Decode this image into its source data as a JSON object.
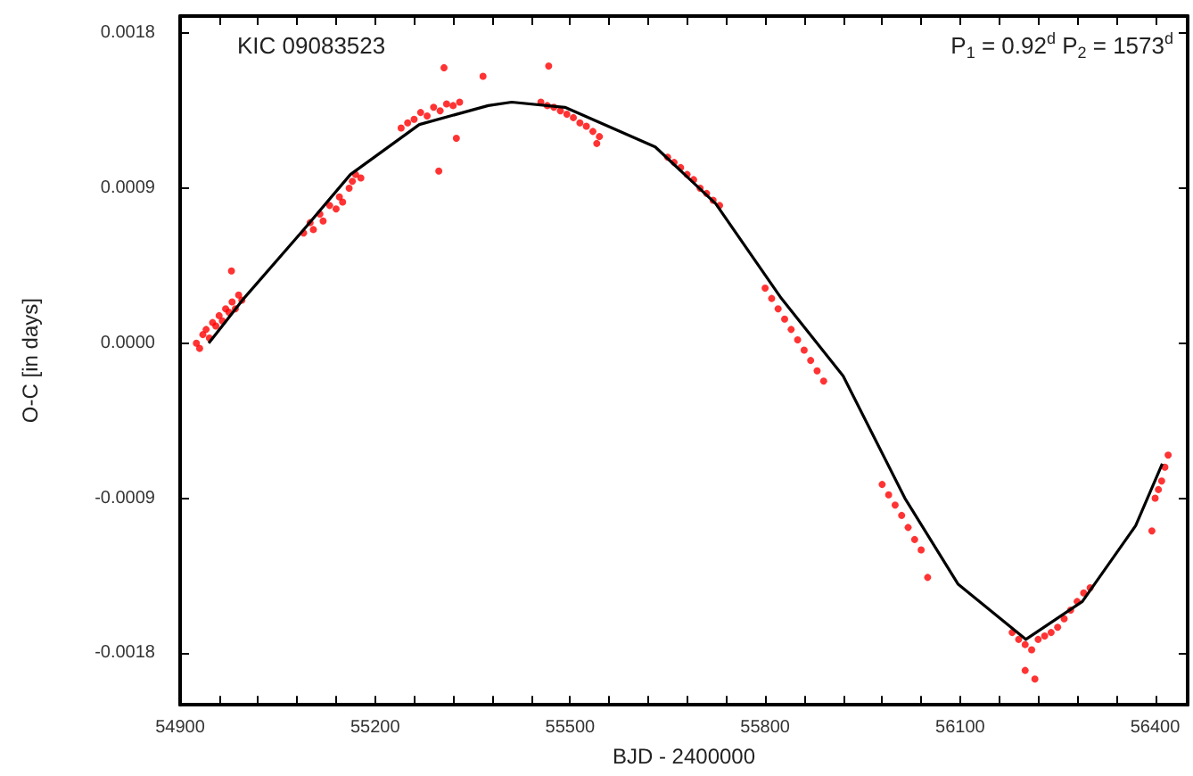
{
  "chart_data": {
    "type": "scatter",
    "title": "KIC 09083523",
    "xlabel": "BJD - 2400000",
    "ylabel": "O-C [in days]",
    "annotations": [
      "P$_{1}$ = 0.92$^{d}$ P$_{2}$ = 1573$^{d}$"
    ],
    "xlim": [
      54900,
      56450
    ],
    "ylim": [
      -0.0021,
      0.0019
    ],
    "xticks": [
      54900,
      {
        "value": 54960,
        "label": null
      },
      {
        "value": 55020,
        "label": null
      },
      {
        "value": 55080,
        "label": null
      },
      {
        "value": 55140,
        "label": null
      },
      55200,
      {
        "value": 55260,
        "label": null
      },
      {
        "value": 55320,
        "label": null
      },
      {
        "value": 55380,
        "label": null
      },
      {
        "value": 55440,
        "label": null
      },
      55500,
      {
        "value": 55560,
        "label": null
      },
      {
        "value": 55620,
        "label": null
      },
      {
        "value": 55680,
        "label": null
      },
      {
        "value": 55740,
        "label": null
      },
      55800,
      {
        "value": 55860,
        "label": null
      },
      {
        "value": 55920,
        "label": null
      },
      {
        "value": 55980,
        "label": null
      },
      {
        "value": 56040,
        "label": null
      },
      56100,
      {
        "value": 56160,
        "label": null
      },
      {
        "value": 56220,
        "label": null
      },
      {
        "value": 56280,
        "label": null
      },
      {
        "value": 56340,
        "label": null
      },
      56400
    ],
    "yticks": [
      {
        "value": -0.0018,
        "label": "-0.0018"
      },
      -0.0009,
      {
        "value": 0,
        "label": "0.0000"
      },
      0.0009,
      0.0018
    ],
    "grid": false,
    "series": [
      {
        "marker": "circle",
        "color": "#ff0000",
        "x": [
          54925,
          54930,
          54935,
          54940,
          54945,
          54950,
          54955,
          54960,
          54965,
          54970,
          54975,
          54980,
          54985,
          54990,
          54995,
          54979,
          55090,
          55100,
          55105,
          55115,
          55120,
          55130,
          55140,
          55145,
          55150,
          55160,
          55165,
          55170,
          55178,
          55240,
          55250,
          55260,
          55270,
          55280,
          55290,
          55300,
          55310,
          55320,
          55330,
          55306,
          55298,
          55325,
          55366,
          55455,
          55465,
          55475,
          55485,
          55495,
          55505,
          55515,
          55525,
          55535,
          55545,
          55467,
          55541,
          55650,
          55660,
          55670,
          55680,
          55690,
          55700,
          55710,
          55720,
          55730,
          55800,
          55810,
          55820,
          55830,
          55840,
          55850,
          55860,
          55870,
          55880,
          55890,
          55980,
          55990,
          56000,
          56010,
          56020,
          56030,
          56040,
          56050,
          56180,
          56190,
          56200,
          56210,
          56220,
          56230,
          56240,
          56250,
          56260,
          56270,
          56280,
          56290,
          56300,
          56200,
          56215,
          56395,
          56400,
          56405,
          56410,
          56415,
          56420
        ],
        "values": [
          0.0,
          -3e-05,
          5e-05,
          8e-05,
          3e-05,
          0.00012,
          0.0001,
          0.00016,
          0.00013,
          0.0002,
          0.00018,
          0.00024,
          0.0002,
          0.00028,
          0.00025,
          0.00042,
          0.00064,
          0.0007,
          0.00066,
          0.00075,
          0.00071,
          0.0008,
          0.00078,
          0.00085,
          0.00082,
          0.0009,
          0.00094,
          0.00098,
          0.00096,
          0.00125,
          0.00128,
          0.0013,
          0.00134,
          0.00132,
          0.00137,
          0.00135,
          0.00139,
          0.00138,
          0.0014,
          0.0016,
          0.001,
          0.00119,
          0.00155,
          0.0014,
          0.00138,
          0.00137,
          0.00135,
          0.00133,
          0.00131,
          0.00128,
          0.00126,
          0.00123,
          0.0012,
          0.00161,
          0.00116,
          0.00108,
          0.00105,
          0.00102,
          0.00098,
          0.00095,
          0.0009,
          0.00087,
          0.00083,
          0.0008,
          0.00032,
          0.00026,
          0.0002,
          0.00014,
          8e-05,
          2e-05,
          -4e-05,
          -0.0001,
          -0.00016,
          -0.00022,
          -0.00082,
          -0.00088,
          -0.00094,
          -0.001,
          -0.00107,
          -0.00114,
          -0.0012,
          -0.00136,
          -0.00168,
          -0.00172,
          -0.00175,
          -0.00178,
          -0.00172,
          -0.0017,
          -0.00168,
          -0.00165,
          -0.0016,
          -0.00155,
          -0.0015,
          -0.00145,
          -0.00142,
          -0.0019,
          -0.00195,
          -0.00109,
          -0.0009,
          -0.00085,
          -0.0008,
          -0.00072,
          -0.00065
        ]
      },
      {
        "type": "line",
        "marker": "none",
        "line_style": "solid",
        "color": "#000000",
        "x": [
          54944,
          54998,
          55088,
          55162,
          55268,
          55374,
          55410,
          55492,
          55631,
          55724,
          55825,
          55920,
          56015,
          56097,
          56201,
          56288,
          56370,
          56411
        ],
        "values": [
          0.0,
          0.00026,
          0.00065,
          0.00098,
          0.00127,
          0.00138,
          0.0014,
          0.00137,
          0.00114,
          0.00081,
          0.00026,
          -0.00019,
          -0.0009,
          -0.0014,
          -0.00172,
          -0.0015,
          -0.00106,
          -0.0007
        ]
      }
    ]
  }
}
